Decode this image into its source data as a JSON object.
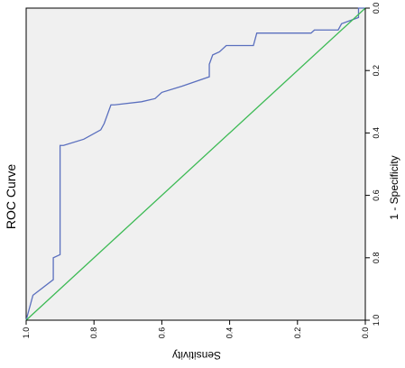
{
  "chart_data": {
    "type": "line",
    "title": "ROC Curve",
    "xlabel": "1 - Specificity",
    "ylabel": "Sensitivity",
    "xlim": [
      0,
      1
    ],
    "ylim": [
      0,
      1
    ],
    "x_ticks": [
      "0.0",
      "0.2",
      "0.4",
      "0.6",
      "0.8",
      "1.0"
    ],
    "y_ticks": [
      "0.0",
      "0.2",
      "0.4",
      "0.6",
      "0.8",
      "1.0"
    ],
    "grid": false,
    "orientation": "rotated 90 degrees counter-clockwise",
    "colors": {
      "plot_background": "#f0f0f0",
      "roc_line": "#5a6fbe",
      "reference_line": "#3cba54",
      "axis": "#000000"
    },
    "series": [
      {
        "x": [
          0.0,
          0.0,
          0.03,
          0.05,
          0.07,
          0.07,
          0.07,
          0.08,
          0.08,
          0.12,
          0.12,
          0.14,
          0.15,
          0.18,
          0.22,
          0.25,
          0.27,
          0.29,
          0.3,
          0.31,
          0.31,
          0.37,
          0.39,
          0.42,
          0.44,
          0.44,
          0.79,
          0.8,
          0.87,
          0.92,
          1.0
        ],
        "y": [
          0.0,
          0.02,
          0.02,
          0.07,
          0.08,
          0.11,
          0.15,
          0.16,
          0.32,
          0.33,
          0.41,
          0.43,
          0.45,
          0.46,
          0.46,
          0.54,
          0.6,
          0.62,
          0.66,
          0.74,
          0.75,
          0.77,
          0.78,
          0.83,
          0.89,
          0.9,
          0.9,
          0.92,
          0.92,
          0.98,
          1.0
        ]
      },
      {
        "x": [
          0,
          1
        ],
        "y": [
          0,
          1
        ]
      }
    ]
  }
}
